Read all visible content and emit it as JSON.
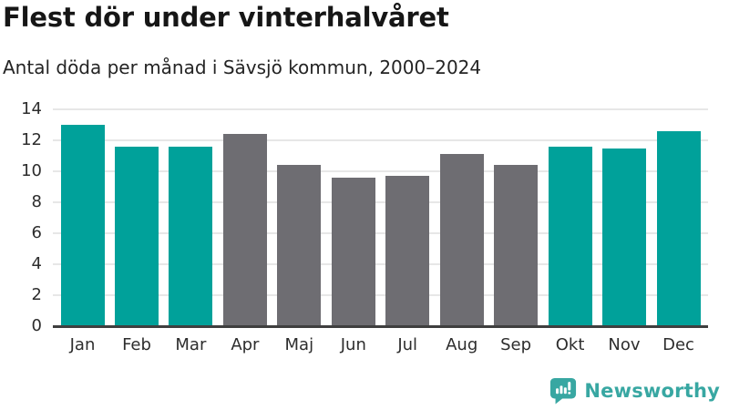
{
  "header": {
    "title": "Flest dör under vinterhalvåret",
    "subtitle": "Antal döda per månad i Sävsjö kommun, 2000–2024"
  },
  "chart_data": {
    "type": "bar",
    "title": "Flest dör under vinterhalvåret",
    "subtitle": "Antal döda per månad i Sävsjö kommun, 2000–2024",
    "categories": [
      "Jan",
      "Feb",
      "Mar",
      "Apr",
      "Maj",
      "Jun",
      "Jul",
      "Aug",
      "Sep",
      "Okt",
      "Nov",
      "Dec"
    ],
    "values": [
      13.0,
      11.6,
      11.6,
      12.4,
      10.4,
      9.6,
      9.7,
      11.1,
      10.4,
      11.6,
      11.5,
      12.6
    ],
    "groups": [
      "winter",
      "winter",
      "winter",
      "summer",
      "summer",
      "summer",
      "summer",
      "summer",
      "summer",
      "winter",
      "winter",
      "winter"
    ],
    "palette": {
      "winter": "#00a19a",
      "summer": "#6e6d72"
    },
    "xlabel": "",
    "ylabel": "",
    "ylim": [
      0,
      14
    ],
    "yticks": [
      0,
      2,
      4,
      6,
      8,
      10,
      12,
      14
    ],
    "grid": "horizontal",
    "legend": "none",
    "grid_color": "#e7e7e7",
    "axis_color": "#3f3f3f"
  },
  "footer": {
    "brand": "Newsworthy",
    "brand_color": "#38a7a2",
    "logo_icon": "bar-chart-speech-bubble"
  }
}
